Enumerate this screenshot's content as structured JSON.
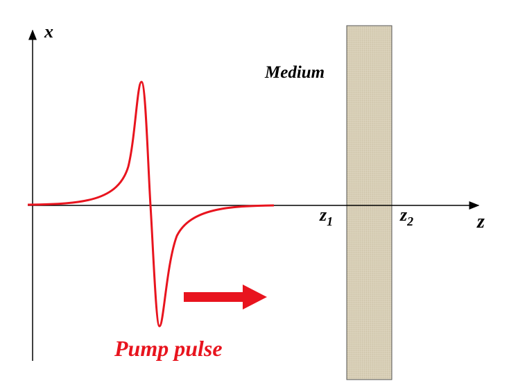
{
  "axes": {
    "vertical": "x",
    "horizontal": "z"
  },
  "medium": {
    "label": "Medium",
    "left": {
      "base": "z",
      "sub": "1"
    },
    "right": {
      "base": "z",
      "sub": "2"
    }
  },
  "pulse": {
    "label": "Pump pulse"
  }
}
